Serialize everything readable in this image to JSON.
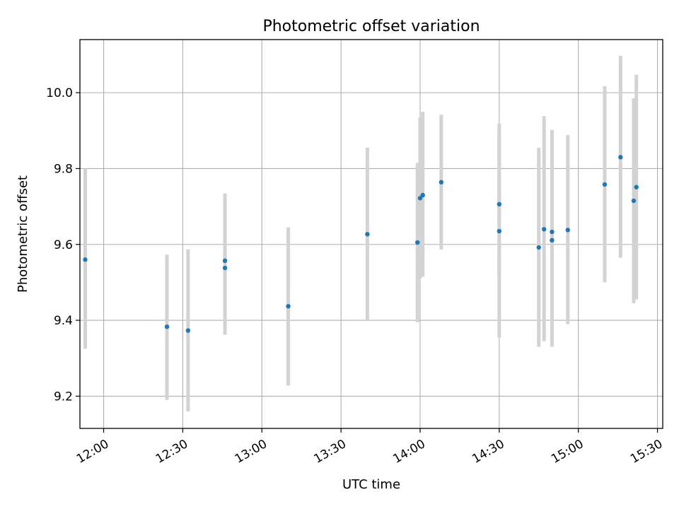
{
  "chart_data": {
    "type": "scatter",
    "title": "Photometric offset variation",
    "xlabel": "UTC time",
    "ylabel": "Photometric offset",
    "x_ticks": [
      "12:00",
      "12:30",
      "13:00",
      "13:30",
      "14:00",
      "14:30",
      "15:00",
      "15:30"
    ],
    "y_ticks": [
      "9.2",
      "9.4",
      "9.6",
      "9.8",
      "10.0"
    ],
    "xlim": [
      "11:51",
      "15:32"
    ],
    "ylim": [
      9.115,
      10.14
    ],
    "grid": true,
    "series": [
      {
        "marker_color": "#1f77b4",
        "errorbar_color": "#d3d3d3",
        "points": [
          {
            "x": "11:53",
            "y": 9.56,
            "ylow": 9.325,
            "yhigh": 9.8
          },
          {
            "x": "12:24",
            "y": 9.383,
            "ylow": 9.19,
            "yhigh": 9.573
          },
          {
            "x": "12:32",
            "y": 9.373,
            "ylow": 9.16,
            "yhigh": 9.587
          },
          {
            "x": "12:46",
            "y": 9.538,
            "ylow": 9.362,
            "yhigh": 9.715
          },
          {
            "x": "12:46",
            "y": 9.557,
            "ylow": 9.38,
            "yhigh": 9.735
          },
          {
            "x": "13:10",
            "y": 9.437,
            "ylow": 9.228,
            "yhigh": 9.645
          },
          {
            "x": "13:40",
            "y": 9.627,
            "ylow": 9.4,
            "yhigh": 9.855
          },
          {
            "x": "13:59",
            "y": 9.605,
            "ylow": 9.395,
            "yhigh": 9.815
          },
          {
            "x": "14:00",
            "y": 9.722,
            "ylow": 9.51,
            "yhigh": 9.935
          },
          {
            "x": "14:01",
            "y": 9.73,
            "ylow": 9.515,
            "yhigh": 9.95
          },
          {
            "x": "14:08",
            "y": 9.764,
            "ylow": 9.587,
            "yhigh": 9.942
          },
          {
            "x": "14:30",
            "y": 9.635,
            "ylow": 9.355,
            "yhigh": 9.918
          },
          {
            "x": "14:30",
            "y": 9.706,
            "ylow": 9.51,
            "yhigh": 9.905
          },
          {
            "x": "14:45",
            "y": 9.592,
            "ylow": 9.33,
            "yhigh": 9.855
          },
          {
            "x": "14:47",
            "y": 9.64,
            "ylow": 9.345,
            "yhigh": 9.938
          },
          {
            "x": "14:50",
            "y": 9.611,
            "ylow": 9.33,
            "yhigh": 9.893
          },
          {
            "x": "14:50",
            "y": 9.633,
            "ylow": 9.365,
            "yhigh": 9.902
          },
          {
            "x": "14:56",
            "y": 9.638,
            "ylow": 9.39,
            "yhigh": 9.888
          },
          {
            "x": "15:10",
            "y": 9.758,
            "ylow": 9.5,
            "yhigh": 10.017
          },
          {
            "x": "15:16",
            "y": 9.83,
            "ylow": 9.565,
            "yhigh": 10.097
          },
          {
            "x": "15:21",
            "y": 9.715,
            "ylow": 9.445,
            "yhigh": 9.985
          },
          {
            "x": "15:22",
            "y": 9.751,
            "ylow": 9.455,
            "yhigh": 10.047
          }
        ]
      }
    ]
  }
}
